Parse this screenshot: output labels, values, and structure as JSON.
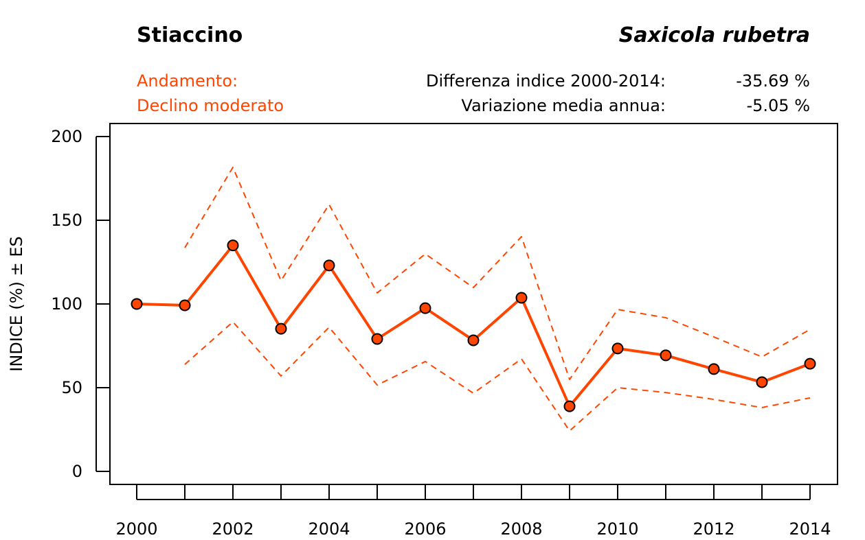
{
  "header": {
    "common_name": "Stiaccino",
    "scientific_name": "Saxicola rubetra",
    "trend_label": "Andamento:",
    "trend_value": "Declino moderato",
    "diff_label": "Differenza indice 2000-2014:",
    "diff_value": "-35.69 %",
    "annual_label": "Variazione media annua:",
    "annual_value": "-5.05 %"
  },
  "colors": {
    "series": "#FF4500",
    "axis": "#000000"
  },
  "chart_data": {
    "type": "line",
    "ylabel": "INDICE (%) ± ES",
    "xlabel": "",
    "ylim": [
      0,
      200
    ],
    "xlim": [
      2000,
      2014
    ],
    "yticks": [
      0,
      50,
      100,
      150,
      200
    ],
    "xticks": [
      2000,
      2001,
      2002,
      2003,
      2004,
      2005,
      2006,
      2007,
      2008,
      2009,
      2010,
      2011,
      2012,
      2013,
      2014
    ],
    "xtick_labels": [
      "2000",
      "2002",
      "2004",
      "2006",
      "2008",
      "2010",
      "2012",
      "2014"
    ],
    "x": [
      2000,
      2001,
      2002,
      2003,
      2004,
      2005,
      2006,
      2007,
      2008,
      2009,
      2010,
      2011,
      2012,
      2013,
      2014
    ],
    "series": [
      {
        "name": "Indice",
        "style": "solid-markers",
        "values": [
          100,
          99.2,
          135,
          85.2,
          123,
          79.1,
          97.5,
          78.3,
          103.7,
          38.9,
          73.4,
          69.3,
          61.1,
          53.3,
          64.3
        ]
      },
      {
        "name": "Indice + ES",
        "style": "dashed",
        "values": [
          null,
          133.6,
          181.6,
          113.9,
          159.4,
          106.6,
          129.9,
          109.8,
          140.2,
          54.9,
          96.7,
          91.8,
          80.3,
          68.4,
          84.8
        ]
      },
      {
        "name": "Indice - ES",
        "style": "dashed",
        "values": [
          null,
          63.9,
          89.3,
          57.0,
          86.1,
          51.6,
          65.6,
          46.7,
          67.2,
          24.2,
          50.0,
          47.1,
          43.0,
          38.1,
          43.9
        ]
      }
    ]
  }
}
